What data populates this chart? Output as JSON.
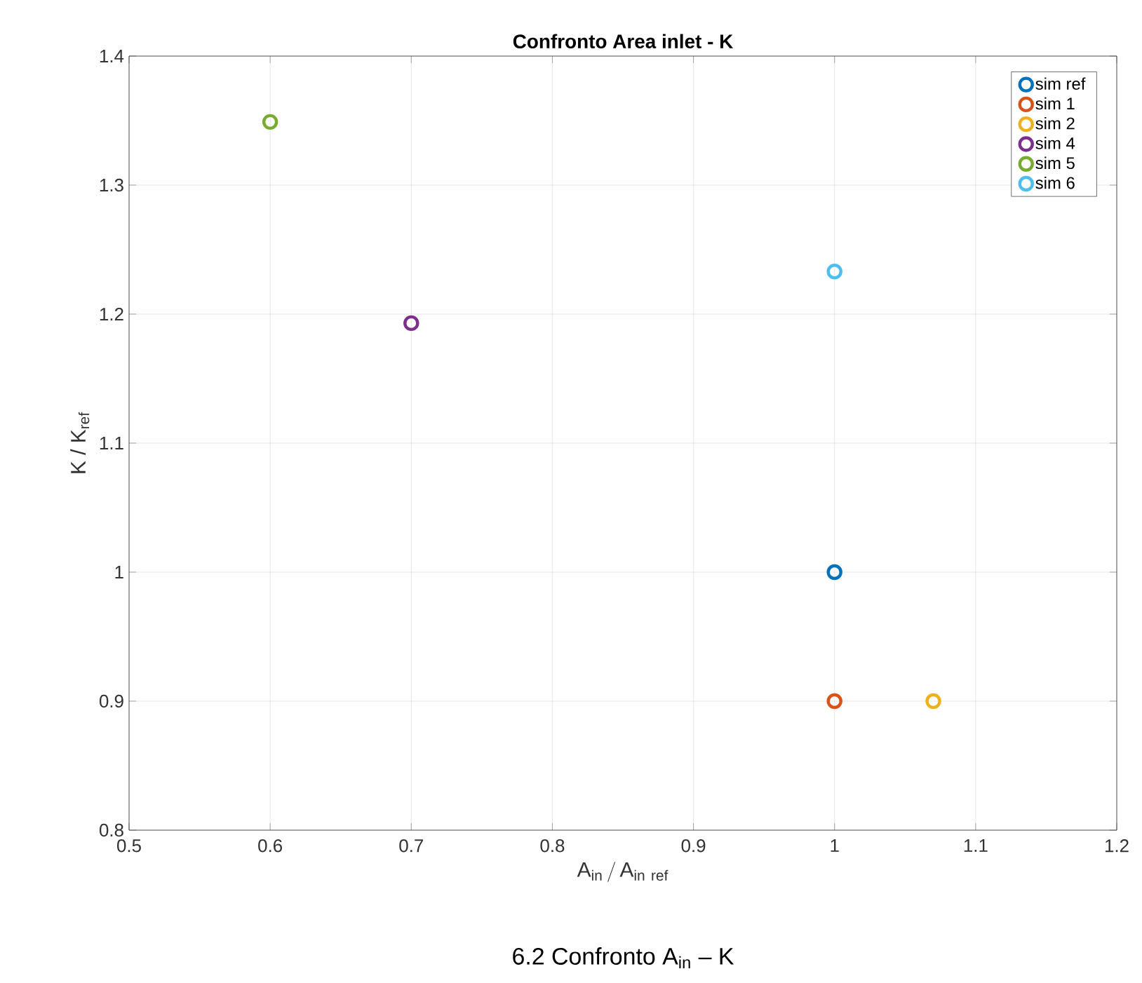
{
  "chart_data": {
    "type": "scatter",
    "title": "Confronto Area inlet - K",
    "xlabel": "\\mathrm{A}_{\\mathrm{in}}\\,/\\,\\mathrm{A}_{\\mathrm{in\\ ref}}",
    "ylabel": "K / K$_{ref}$",
    "annotations": [
      "6.2 Confronto A$_{in}$ – K"
    ],
    "xlim": [
      0.5,
      1.2
    ],
    "xticks": [
      0.5,
      0.6,
      0.7,
      0.8,
      0.9,
      {
        "value": 1,
        "label": "1"
      },
      1.1,
      1.2
    ],
    "ylim": [
      0.8,
      1.4
    ],
    "yticks": [
      0.8,
      0.9,
      {
        "value": 1,
        "label": "1"
      },
      1.1,
      1.2,
      1.3,
      1.4
    ],
    "grid": true,
    "legend": "top right",
    "marker": "circle",
    "series": [
      {
        "name": "sim ref",
        "color": "#0072bd",
        "x": [
          1.0
        ],
        "values": [
          1.0
        ]
      },
      {
        "name": "sim 1",
        "color": "#d95319",
        "x": [
          1.0
        ],
        "values": [
          0.9
        ]
      },
      {
        "name": "sim 2",
        "color": "#edb120",
        "x": [
          1.07
        ],
        "values": [
          0.9
        ]
      },
      {
        "name": "sim 4",
        "color": "#7e2f8e",
        "x": [
          0.7
        ],
        "values": [
          1.193
        ]
      },
      {
        "name": "sim 5",
        "color": "#77ac30",
        "x": [
          0.6
        ],
        "values": [
          1.349
        ]
      },
      {
        "name": "sim 6",
        "color": "#4dbeee",
        "x": [
          1.0
        ],
        "values": [
          1.233
        ]
      }
    ]
  }
}
